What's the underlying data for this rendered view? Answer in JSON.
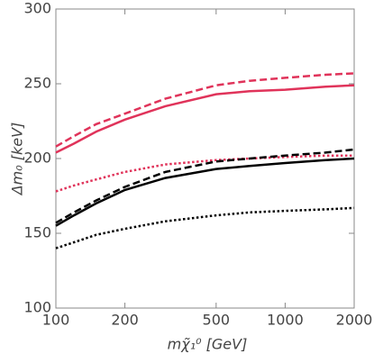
{
  "chart_data": {
    "type": "line",
    "xlabel": "mχ̃₁⁰ [GeV]",
    "ylabel": "Δm₀ [keV]",
    "x": [
      100,
      120,
      150,
      200,
      300,
      500,
      700,
      1000,
      1500,
      2000
    ],
    "xscale": "log",
    "xlim": [
      100,
      2000
    ],
    "xticks": [
      100,
      200,
      500,
      1000,
      2000
    ],
    "ylim": [
      100,
      300
    ],
    "yticks": [
      100,
      150,
      200,
      250,
      300
    ],
    "series": [
      {
        "color": "#e0335a",
        "dash": "dashed",
        "values": [
          208,
          215,
          223,
          230,
          240,
          249,
          252,
          254,
          256,
          257
        ]
      },
      {
        "color": "#e0335a",
        "dash": "solid",
        "values": [
          204,
          210,
          218,
          226,
          235,
          243,
          245,
          246,
          248,
          249
        ]
      },
      {
        "color": "#e0335a",
        "dash": "dotted",
        "values": [
          178,
          182,
          186,
          191,
          196,
          199,
          200,
          201,
          202,
          202
        ]
      },
      {
        "color": "#000000",
        "dash": "dashed",
        "values": [
          157,
          164,
          172,
          181,
          191,
          198,
          200,
          202,
          204,
          206
        ]
      },
      {
        "color": "#000000",
        "dash": "solid",
        "values": [
          155,
          162,
          170,
          179,
          187,
          193,
          195,
          197,
          199,
          200
        ]
      },
      {
        "color": "#000000",
        "dash": "dotted",
        "values": [
          140,
          144,
          149,
          153,
          158,
          162,
          164,
          165,
          166,
          167
        ]
      }
    ]
  }
}
